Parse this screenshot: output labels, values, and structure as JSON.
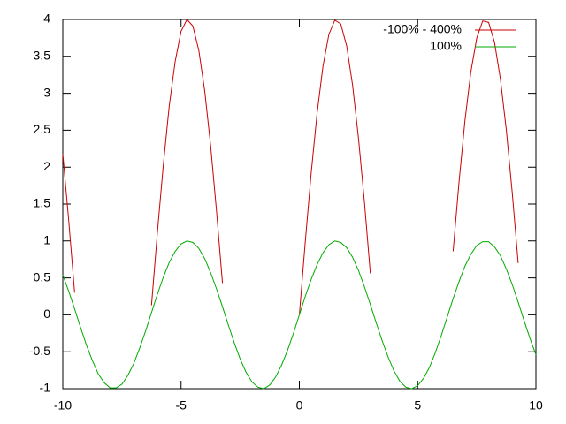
{
  "chart_data": {
    "type": "line",
    "x": [
      -10,
      -9.75,
      -9.5,
      -9.25,
      -9,
      -8.75,
      -8.5,
      -8.25,
      -8,
      -7.75,
      -7.5,
      -7.25,
      -7,
      -6.75,
      -6.5,
      -6.25,
      -6,
      -5.75,
      -5.5,
      -5.25,
      -5,
      -4.75,
      -4.5,
      -4.25,
      -4,
      -3.75,
      -3.5,
      -3.25,
      -3,
      -2.75,
      -2.5,
      -2.25,
      -2,
      -1.75,
      -1.5,
      -1.25,
      -1,
      -0.75,
      -0.5,
      -0.25,
      0,
      0.25,
      0.5,
      0.75,
      1,
      1.25,
      1.5,
      1.75,
      2,
      2.25,
      2.5,
      2.75,
      3,
      3.25,
      3.5,
      3.75,
      4,
      4.25,
      4.5,
      4.75,
      5,
      5.25,
      5.5,
      5.75,
      6,
      6.25,
      6.5,
      6.75,
      7,
      7.25,
      7.5,
      7.75,
      8,
      8.25,
      8.5,
      8.75,
      9,
      9.25,
      9.5,
      9.75,
      10
    ],
    "series": [
      {
        "name": "-100% - 400%",
        "color": "#cc0000",
        "values": [
          2.18,
          1.28,
          0.3,
          null,
          null,
          null,
          null,
          null,
          null,
          null,
          null,
          null,
          null,
          null,
          null,
          0.13,
          1.12,
          2.03,
          2.83,
          3.43,
          3.84,
          4.0,
          3.91,
          3.58,
          3.03,
          2.29,
          1.4,
          0.43,
          null,
          null,
          null,
          null,
          null,
          null,
          null,
          null,
          null,
          null,
          null,
          null,
          0,
          0.99,
          1.92,
          2.73,
          3.37,
          3.8,
          3.99,
          3.94,
          3.64,
          3.11,
          2.39,
          1.53,
          0.56,
          null,
          null,
          null,
          null,
          null,
          null,
          null,
          null,
          null,
          null,
          null,
          null,
          null,
          0.86,
          1.8,
          2.63,
          3.29,
          3.75,
          3.98,
          3.96,
          3.69,
          3.19,
          2.5,
          1.65,
          0.7,
          null,
          null,
          null
        ]
      },
      {
        "name": "100%",
        "color": "#00aa00",
        "values": [
          0.54,
          0.32,
          0.08,
          -0.17,
          -0.41,
          -0.62,
          -0.8,
          -0.92,
          -0.99,
          -0.99,
          -0.94,
          -0.82,
          -0.66,
          -0.45,
          -0.22,
          0.03,
          0.28,
          0.51,
          0.71,
          0.86,
          0.96,
          1.0,
          0.98,
          0.9,
          0.76,
          0.57,
          0.35,
          0.11,
          -0.14,
          -0.38,
          -0.6,
          -0.78,
          -0.91,
          -0.98,
          -1.0,
          -0.95,
          -0.84,
          -0.68,
          -0.48,
          -0.25,
          0,
          0.25,
          0.48,
          0.68,
          0.84,
          0.95,
          1.0,
          0.98,
          0.91,
          0.78,
          0.6,
          0.38,
          0.14,
          -0.11,
          -0.35,
          -0.57,
          -0.76,
          -0.9,
          -0.98,
          -1.0,
          -0.96,
          -0.86,
          -0.71,
          -0.51,
          -0.28,
          -0.03,
          0.22,
          0.45,
          0.66,
          0.82,
          0.94,
          0.99,
          0.99,
          0.92,
          0.8,
          0.62,
          0.41,
          0.17,
          -0.08,
          -0.32,
          -0.54
        ]
      }
    ],
    "xlim": [
      -10,
      10
    ],
    "xticks": [
      -10,
      -5,
      0,
      5,
      10
    ],
    "ylim": [
      -1,
      4
    ],
    "yticks": [
      -1,
      -0.5,
      0,
      0.5,
      1,
      1.5,
      2,
      2.5,
      3,
      3.5,
      4
    ],
    "legend": "top-right"
  }
}
